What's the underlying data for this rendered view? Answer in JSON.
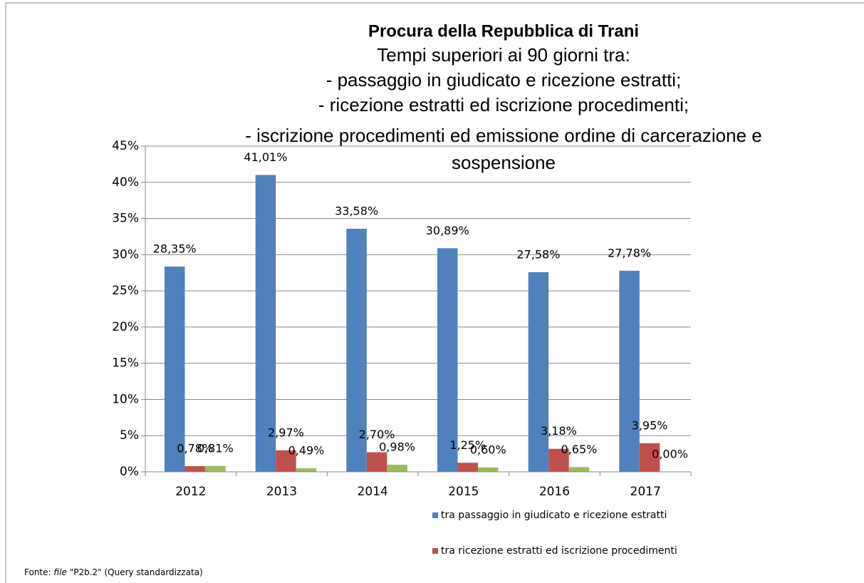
{
  "chart_data": {
    "type": "bar",
    "title": "Procura della Repubblica di Trani",
    "subtitle": [
      "Tempi superiori ai 90 giorni tra:",
      "- passaggio in giudicato e ricezione estratti;",
      "- ricezione estratti ed iscrizione procedimenti;",
      "- iscrizione procedimenti ed emissione ordine di carcerazione e",
      "sospensione"
    ],
    "categories": [
      "2012",
      "2013",
      "2014",
      "2015",
      "2016",
      "2017"
    ],
    "series": [
      {
        "name": "tra passaggio in giudicato e ricezione estratti",
        "color": "#4f81bd",
        "values": [
          28.35,
          41.01,
          33.58,
          30.89,
          27.58,
          27.78
        ],
        "value_labels": [
          "28,35%",
          "41,01%",
          "33,58%",
          "30,89%",
          "27,58%",
          "27,78%"
        ]
      },
      {
        "name": "tra ricezione estratti ed iscrizione procedimenti",
        "color": "#c0504d",
        "values": [
          0.78,
          2.97,
          2.7,
          1.25,
          3.18,
          3.95
        ],
        "value_labels": [
          "0,78%",
          "2,97%",
          "2,70%",
          "1,25%",
          "3,18%",
          "3,95%"
        ]
      },
      {
        "color": "#9bbb59",
        "values": [
          0.81,
          0.49,
          0.98,
          0.6,
          0.65,
          0.0
        ],
        "value_labels": [
          "0,81%",
          "0,49%",
          "0,98%",
          "0,60%",
          "0,65%",
          "0,00%"
        ]
      }
    ],
    "ylim": [
      0,
      45
    ],
    "yticks": [
      {
        "value": 0,
        "label": "0%"
      },
      {
        "value": 5,
        "label": "5%"
      },
      {
        "value": 10,
        "label": "10%"
      },
      {
        "value": 15,
        "label": "15%"
      },
      {
        "value": 20,
        "label": "20%"
      },
      {
        "value": 25,
        "label": "25%"
      },
      {
        "value": 30,
        "label": "30%"
      },
      {
        "value": 35,
        "label": "35%"
      },
      {
        "value": 40,
        "label": "40%"
      },
      {
        "value": 45,
        "label": "45%"
      }
    ],
    "grid": true,
    "legend": "bottom",
    "source": [
      "Fonte:",
      "file",
      "\"P2b.2\" (Query standardizzata)"
    ]
  }
}
